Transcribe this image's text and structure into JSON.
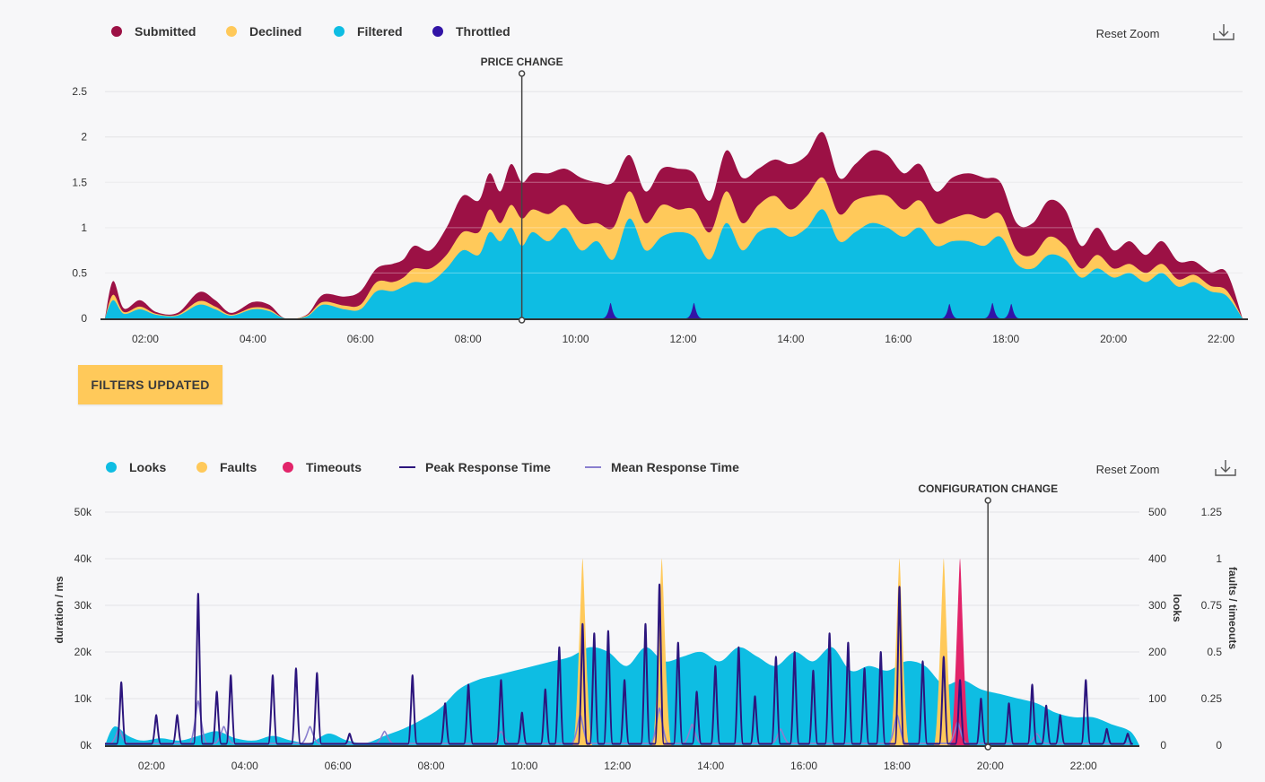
{
  "filters_button": {
    "label": "FILTERS UPDATED"
  },
  "chart_data": [
    {
      "type": "area",
      "stacked": true,
      "legend_position": "top-left",
      "reset_label": "Reset Zoom",
      "download_icon": "download-icon",
      "x_ticks": [
        "02:00",
        "04:00",
        "06:00",
        "08:00",
        "10:00",
        "12:00",
        "14:00",
        "16:00",
        "18:00",
        "20:00",
        "22:00"
      ],
      "xlim": [
        1.25,
        22.4
      ],
      "y_ticks": [
        "0",
        "0.5",
        "1",
        "1.5",
        "2",
        "2.5"
      ],
      "ylim": [
        0,
        2.6
      ],
      "grid": true,
      "annotation": {
        "label": "PRICE CHANGE",
        "x": 9.0
      },
      "x": [
        1.25,
        1.4,
        1.6,
        1.9,
        2.2,
        2.6,
        3.0,
        3.3,
        3.6,
        4.0,
        4.3,
        4.6,
        5.0,
        5.3,
        5.7,
        6.0,
        6.3,
        6.6,
        6.8,
        7.0,
        7.3,
        7.6,
        7.9,
        8.2,
        8.4,
        8.6,
        8.8,
        9.0,
        9.2,
        9.5,
        9.8,
        10.1,
        10.4,
        10.7,
        11.0,
        11.3,
        11.6,
        11.9,
        12.2,
        12.5,
        12.8,
        13.1,
        13.4,
        13.7,
        14.0,
        14.3,
        14.6,
        14.9,
        15.2,
        15.5,
        15.8,
        16.1,
        16.4,
        16.7,
        17.0,
        17.3,
        17.6,
        17.9,
        18.2,
        18.5,
        18.8,
        19.1,
        19.4,
        19.7,
        20.0,
        20.3,
        20.6,
        20.9,
        21.2,
        21.5,
        21.8,
        22.1,
        22.4
      ],
      "series": [
        {
          "name": "Filtered",
          "color": "#0ebde3",
          "values": [
            0.0,
            0.2,
            0.05,
            0.1,
            0.04,
            0.03,
            0.15,
            0.1,
            0.03,
            0.1,
            0.08,
            0.0,
            0.02,
            0.15,
            0.1,
            0.1,
            0.3,
            0.3,
            0.35,
            0.4,
            0.4,
            0.55,
            0.75,
            0.7,
            0.95,
            0.85,
            1.0,
            0.8,
            0.95,
            0.85,
            1.0,
            0.75,
            0.85,
            0.65,
            1.1,
            0.75,
            0.9,
            0.95,
            0.9,
            0.65,
            1.05,
            0.75,
            0.95,
            1.0,
            0.9,
            1.0,
            1.2,
            0.85,
            0.95,
            1.05,
            1.0,
            0.9,
            1.0,
            0.8,
            0.85,
            0.85,
            0.8,
            0.9,
            0.6,
            0.55,
            0.7,
            0.65,
            0.45,
            0.55,
            0.45,
            0.5,
            0.4,
            0.5,
            0.35,
            0.4,
            0.3,
            0.25,
            0.0
          ]
        },
        {
          "name": "Declined",
          "color": "#ffc95a",
          "values": [
            0.0,
            0.06,
            0.02,
            0.03,
            0.01,
            0.01,
            0.04,
            0.03,
            0.01,
            0.02,
            0.02,
            0.0,
            0.01,
            0.03,
            0.04,
            0.05,
            0.1,
            0.1,
            0.1,
            0.15,
            0.15,
            0.15,
            0.2,
            0.25,
            0.25,
            0.2,
            0.25,
            0.3,
            0.25,
            0.3,
            0.25,
            0.3,
            0.2,
            0.35,
            0.3,
            0.3,
            0.35,
            0.25,
            0.3,
            0.3,
            0.35,
            0.3,
            0.3,
            0.35,
            0.3,
            0.35,
            0.35,
            0.3,
            0.35,
            0.3,
            0.35,
            0.3,
            0.3,
            0.25,
            0.25,
            0.3,
            0.3,
            0.25,
            0.15,
            0.15,
            0.2,
            0.15,
            0.1,
            0.15,
            0.1,
            0.1,
            0.1,
            0.1,
            0.08,
            0.08,
            0.06,
            0.06,
            0.0
          ]
        },
        {
          "name": "Submitted",
          "color": "#9c1145",
          "values": [
            0.0,
            0.15,
            0.04,
            0.07,
            0.02,
            0.02,
            0.1,
            0.07,
            0.02,
            0.06,
            0.05,
            0.0,
            0.01,
            0.08,
            0.1,
            0.15,
            0.15,
            0.2,
            0.2,
            0.25,
            0.2,
            0.3,
            0.4,
            0.35,
            0.4,
            0.35,
            0.45,
            0.4,
            0.4,
            0.45,
            0.4,
            0.5,
            0.45,
            0.5,
            0.4,
            0.35,
            0.4,
            0.45,
            0.4,
            0.35,
            0.45,
            0.5,
            0.4,
            0.4,
            0.5,
            0.45,
            0.5,
            0.4,
            0.4,
            0.5,
            0.45,
            0.4,
            0.4,
            0.35,
            0.45,
            0.45,
            0.45,
            0.35,
            0.3,
            0.35,
            0.4,
            0.4,
            0.25,
            0.3,
            0.2,
            0.25,
            0.2,
            0.25,
            0.2,
            0.15,
            0.15,
            0.2,
            0.0
          ]
        },
        {
          "name": "Throttled",
          "color": "#3214a6",
          "peaks": [
            {
              "x": 10.65,
              "y": 0.17
            },
            {
              "x": 12.2,
              "y": 0.17
            },
            {
              "x": 16.95,
              "y": 0.16
            },
            {
              "x": 17.75,
              "y": 0.17
            },
            {
              "x": 18.1,
              "y": 0.16
            }
          ]
        }
      ]
    },
    {
      "type": "area",
      "legend_position": "top-left",
      "reset_label": "Reset Zoom",
      "download_icon": "download-icon",
      "x_ticks": [
        "02:00",
        "04:00",
        "06:00",
        "08:00",
        "10:00",
        "12:00",
        "14:00",
        "16:00",
        "18:00",
        "20:00",
        "22:00"
      ],
      "xlim": [
        1.0,
        23.2
      ],
      "ylabel": "duration / ms",
      "ylabel_right": "looks",
      "ylabel_right2": "faults / timeouts",
      "y_ticks": [
        "0k",
        "10k",
        "20k",
        "30k",
        "40k",
        "50k"
      ],
      "y_ticks_right": [
        "0",
        "100",
        "200",
        "300",
        "400",
        "500"
      ],
      "y_ticks_right2": [
        "0",
        "0.25",
        "0.5",
        "0.75",
        "1",
        "1.25"
      ],
      "ylim": [
        0,
        50000
      ],
      "grid": true,
      "annotation": {
        "label": "CONFIGURATION CHANGE",
        "x": 19.95
      },
      "series": [
        {
          "name": "Looks",
          "color": "#0ebde3",
          "axis": "looks",
          "x": [
            1.0,
            1.2,
            1.5,
            1.8,
            2.2,
            2.6,
            3.0,
            3.4,
            3.8,
            4.2,
            4.6,
            5.0,
            5.4,
            5.8,
            6.2,
            6.6,
            7.0,
            7.4,
            7.8,
            8.2,
            8.6,
            9.0,
            9.4,
            9.8,
            10.2,
            10.6,
            11.0,
            11.4,
            11.8,
            12.2,
            12.6,
            13.0,
            13.4,
            13.8,
            14.2,
            14.6,
            15.0,
            15.4,
            15.8,
            16.2,
            16.6,
            17.0,
            17.4,
            17.8,
            18.2,
            18.6,
            19.0,
            19.4,
            19.8,
            20.2,
            20.6,
            21.0,
            21.4,
            21.8,
            22.2,
            22.6,
            23.0,
            23.2
          ],
          "values": [
            0,
            40,
            20,
            10,
            15,
            10,
            20,
            30,
            15,
            10,
            20,
            10,
            5,
            25,
            10,
            5,
            20,
            35,
            55,
            80,
            120,
            140,
            150,
            160,
            170,
            180,
            190,
            210,
            200,
            170,
            210,
            180,
            190,
            200,
            180,
            210,
            190,
            170,
            200,
            180,
            210,
            160,
            170,
            160,
            180,
            170,
            130,
            140,
            120,
            110,
            100,
            90,
            70,
            60,
            60,
            45,
            30,
            0
          ]
        },
        {
          "name": "Faults",
          "color": "#ffc95a",
          "axis": "faults / timeouts",
          "peaks": [
            {
              "x": 11.25,
              "y": 1.0
            },
            {
              "x": 12.95,
              "y": 1.0
            },
            {
              "x": 18.05,
              "y": 1.0
            },
            {
              "x": 19.0,
              "y": 1.0
            }
          ]
        },
        {
          "name": "Timeouts",
          "color": "#e2246a",
          "axis": "faults / timeouts",
          "peaks": [
            {
              "x": 19.35,
              "y": 1.0
            }
          ]
        },
        {
          "name": "Peak Response Time",
          "color": "#2c157d",
          "axis": "duration / ms",
          "baseline": 300,
          "peaks": [
            {
              "x": 1.35,
              "y": 13500
            },
            {
              "x": 2.1,
              "y": 6500
            },
            {
              "x": 2.55,
              "y": 6500
            },
            {
              "x": 3.0,
              "y": 32500
            },
            {
              "x": 3.4,
              "y": 11500
            },
            {
              "x": 3.7,
              "y": 15000
            },
            {
              "x": 4.6,
              "y": 15000
            },
            {
              "x": 5.1,
              "y": 16500
            },
            {
              "x": 5.55,
              "y": 15500
            },
            {
              "x": 6.25,
              "y": 2500
            },
            {
              "x": 7.6,
              "y": 15000
            },
            {
              "x": 8.3,
              "y": 9000
            },
            {
              "x": 8.8,
              "y": 13000
            },
            {
              "x": 9.5,
              "y": 14000
            },
            {
              "x": 9.95,
              "y": 7000
            },
            {
              "x": 10.45,
              "y": 12000
            },
            {
              "x": 10.75,
              "y": 21000
            },
            {
              "x": 11.25,
              "y": 26000
            },
            {
              "x": 11.5,
              "y": 24000
            },
            {
              "x": 11.8,
              "y": 24500
            },
            {
              "x": 12.15,
              "y": 14000
            },
            {
              "x": 12.6,
              "y": 26000
            },
            {
              "x": 12.9,
              "y": 34500
            },
            {
              "x": 13.3,
              "y": 22000
            },
            {
              "x": 13.7,
              "y": 11500
            },
            {
              "x": 14.1,
              "y": 17000
            },
            {
              "x": 14.6,
              "y": 21000
            },
            {
              "x": 14.95,
              "y": 10500
            },
            {
              "x": 15.4,
              "y": 19000
            },
            {
              "x": 15.8,
              "y": 20000
            },
            {
              "x": 16.2,
              "y": 16000
            },
            {
              "x": 16.55,
              "y": 24000
            },
            {
              "x": 16.95,
              "y": 22000
            },
            {
              "x": 17.3,
              "y": 16500
            },
            {
              "x": 17.65,
              "y": 20000
            },
            {
              "x": 18.05,
              "y": 34000
            },
            {
              "x": 18.55,
              "y": 18000
            },
            {
              "x": 19.0,
              "y": 19000
            },
            {
              "x": 19.35,
              "y": 14000
            },
            {
              "x": 19.8,
              "y": 10000
            },
            {
              "x": 20.4,
              "y": 9000
            },
            {
              "x": 20.9,
              "y": 13000
            },
            {
              "x": 21.2,
              "y": 8500
            },
            {
              "x": 21.5,
              "y": 6500
            },
            {
              "x": 22.05,
              "y": 14000
            },
            {
              "x": 22.5,
              "y": 3500
            },
            {
              "x": 22.95,
              "y": 2500
            }
          ]
        },
        {
          "name": "Mean Response Time",
          "color": "#8a7fcf",
          "axis": "duration / ms",
          "baseline": 400,
          "peaks": [
            {
              "x": 1.3,
              "y": 3500
            },
            {
              "x": 3.0,
              "y": 9500
            },
            {
              "x": 3.55,
              "y": 4000
            },
            {
              "x": 5.4,
              "y": 4000
            },
            {
              "x": 7.0,
              "y": 3000
            },
            {
              "x": 9.5,
              "y": 3000
            },
            {
              "x": 11.2,
              "y": 6500
            },
            {
              "x": 12.9,
              "y": 8000
            },
            {
              "x": 13.6,
              "y": 4500
            },
            {
              "x": 15.5,
              "y": 3500
            },
            {
              "x": 18.0,
              "y": 6500
            },
            {
              "x": 19.3,
              "y": 5000
            },
            {
              "x": 21.0,
              "y": 2500
            }
          ]
        }
      ]
    }
  ]
}
